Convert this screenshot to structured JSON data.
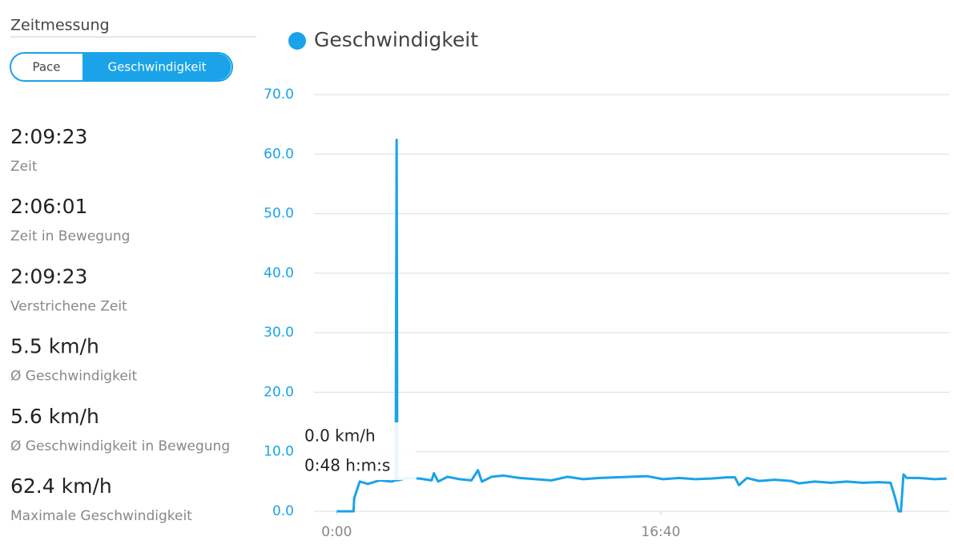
{
  "sidebar": {
    "title": "Zeitmessung",
    "toggle": [
      "Pace",
      "Geschwindigkeit"
    ],
    "stats": [
      {
        "value": "2:09:23",
        "label": "Zeit"
      },
      {
        "value": "2:06:01",
        "label": "Zeit in Bewegung"
      },
      {
        "value": "2:09:23",
        "label": "Verstrichene Zeit"
      },
      {
        "value": "5.5 km/h",
        "label": "Ø Geschwindigkeit"
      },
      {
        "value": "5.6 km/h",
        "label": "Ø Geschwindigkeit in Bewegung"
      },
      {
        "value": "62.4 km/h",
        "label": "Maximale Geschwindigkeit"
      }
    ]
  },
  "chart_data": {
    "type": "line",
    "x": [
      0,
      47,
      52,
      54,
      71,
      96,
      133,
      170,
      182,
      185,
      187,
      219,
      256,
      293,
      300,
      313,
      342,
      379,
      416,
      436,
      448,
      478,
      515,
      564,
      613,
      663,
      712,
      761,
      810,
      860,
      909,
      958,
      1007,
      1057,
      1106,
      1155,
      1204,
      1229,
      1241,
      1266,
      1303,
      1352,
      1401,
      1426,
      1475,
      1525,
      1574,
      1623,
      1672,
      1709,
      1722,
      1734,
      1741,
      1749,
      1759,
      1796,
      1845,
      1882
    ],
    "series": [
      {
        "name": "Geschwindigkeit",
        "color": "#1aa3e8",
        "values": [
          0,
          0,
          0,
          2.2,
          5.0,
          4.6,
          5.2,
          5.0,
          5.2,
          62.4,
          5.2,
          5.6,
          5.5,
          5.2,
          6.4,
          5.0,
          5.8,
          5.4,
          5.2,
          6.9,
          5.0,
          5.8,
          6.0,
          5.6,
          5.4,
          5.2,
          5.8,
          5.4,
          5.6,
          5.7,
          5.8,
          5.9,
          5.4,
          5.6,
          5.4,
          5.5,
          5.7,
          5.7,
          4.4,
          5.6,
          5.1,
          5.3,
          5.1,
          4.7,
          5.0,
          4.8,
          5.0,
          4.8,
          4.9,
          4.8,
          2.5,
          0,
          0,
          6.2,
          5.6,
          5.6,
          5.4,
          5.5
        ]
      }
    ],
    "xlim": [
      -70,
      1890
    ],
    "xticks": [
      {
        "value": 0,
        "label": "0:00"
      },
      {
        "value": 1000,
        "label": "16:40"
      }
    ],
    "ylim": [
      0,
      70
    ],
    "yticks": [
      {
        "value": 0,
        "label": "0.0"
      },
      {
        "value": 10,
        "label": "10.0"
      },
      {
        "value": 20,
        "label": "20.0"
      },
      {
        "value": 30,
        "label": "30.0"
      },
      {
        "value": 40,
        "label": "40.0"
      },
      {
        "value": 50,
        "label": "50.0"
      },
      {
        "value": 60,
        "label": "60.0"
      },
      {
        "value": 70,
        "label": "70.0"
      }
    ],
    "grid": true,
    "tooltip": {
      "value": "0.0 km/h",
      "time": "0:48 h:m:s"
    }
  }
}
